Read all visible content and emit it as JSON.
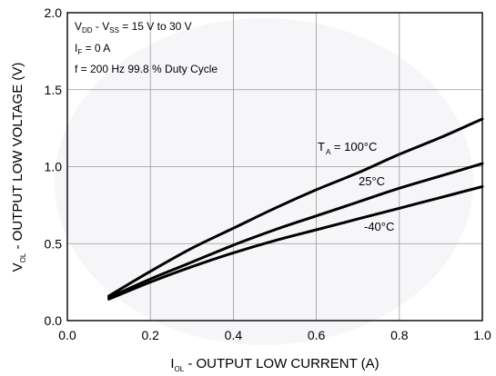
{
  "chart_data": {
    "type": "line",
    "xlabel": {
      "main": "I",
      "sub": "OL",
      "rest": " - OUTPUT LOW CURRENT (A)"
    },
    "ylabel": {
      "main": "V",
      "sub": "OL",
      "rest": " - OUTPUT LOW VOLTAGE (V)"
    },
    "xlim": [
      0.0,
      1.0
    ],
    "ylim": [
      0.0,
      2.0
    ],
    "x_ticks": [
      "0.0",
      "0.2",
      "0.4",
      "0.6",
      "0.8",
      "1.0"
    ],
    "y_ticks": [
      "0.0",
      "0.5",
      "1.0",
      "1.5",
      "2.0"
    ],
    "grid": true,
    "conditions": {
      "line1": {
        "a": "V",
        "a_sub": "DD",
        "b": " - V",
        "b_sub": "SS",
        "c": " = 15 V to 30 V"
      },
      "line2": {
        "a": "I",
        "a_sub": "F",
        "c": " = 0 A"
      },
      "line3": "f = 200 Hz 99.8 % Duty Cycle"
    },
    "series": [
      {
        "label_main": "T",
        "label_sub": "A",
        "label_rest": " = 100°C",
        "x": [
          0.1,
          0.2,
          0.3,
          0.4,
          0.5,
          0.6,
          0.7,
          0.8,
          0.9,
          1.0
        ],
        "values": [
          0.16,
          0.32,
          0.47,
          0.6,
          0.73,
          0.85,
          0.96,
          1.08,
          1.19,
          1.31
        ]
      },
      {
        "label_main": "25°C",
        "x": [
          0.1,
          0.2,
          0.3,
          0.4,
          0.5,
          0.6,
          0.7,
          0.8,
          0.9,
          1.0
        ],
        "values": [
          0.15,
          0.27,
          0.38,
          0.49,
          0.59,
          0.68,
          0.77,
          0.86,
          0.94,
          1.02
        ]
      },
      {
        "label_main": "-40°C",
        "x": [
          0.1,
          0.2,
          0.3,
          0.4,
          0.5,
          0.6,
          0.7,
          0.8,
          0.9,
          1.0
        ],
        "values": [
          0.14,
          0.25,
          0.35,
          0.44,
          0.52,
          0.59,
          0.66,
          0.73,
          0.8,
          0.87
        ]
      }
    ]
  }
}
